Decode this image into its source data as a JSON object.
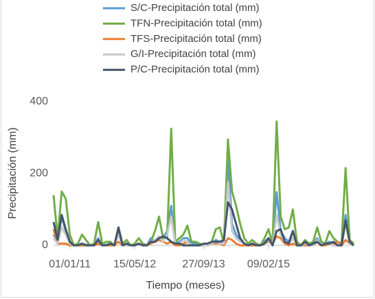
{
  "chart_data": {
    "type": "line",
    "x_label": "Tiempo (meses)",
    "y_label": "Precipitación (mm)",
    "categories": [
      null,
      null,
      null,
      null,
      "01/01/11",
      null,
      null,
      null,
      null,
      null,
      null,
      null,
      null,
      null,
      null,
      null,
      null,
      null,
      null,
      null,
      "15/05/12",
      null,
      null,
      null,
      null,
      null,
      null,
      null,
      null,
      null,
      null,
      null,
      null,
      null,
      null,
      null,
      null,
      "27/09/13",
      null,
      null,
      null,
      null,
      null,
      null,
      null,
      null,
      null,
      null,
      null,
      null,
      null,
      null,
      null,
      "09/02/15",
      null,
      null,
      null,
      null,
      null,
      null,
      null,
      null,
      null,
      null,
      null,
      null,
      null,
      null,
      null,
      null,
      null,
      null,
      null,
      null,
      null
    ],
    "series": [
      {
        "name": "S/C-Precipitación total (mm)",
        "color": "#5b9bd5",
        "values": [
          30,
          10,
          80,
          40,
          5,
          0,
          0,
          5,
          2,
          0,
          0,
          20,
          0,
          2,
          5,
          0,
          40,
          5,
          3,
          0,
          0,
          5,
          0,
          0,
          20,
          10,
          15,
          20,
          40,
          110,
          5,
          10,
          20,
          20,
          5,
          5,
          0,
          0,
          0,
          5,
          15,
          10,
          5,
          240,
          60,
          30,
          15,
          5,
          0,
          5,
          0,
          0,
          10,
          20,
          0,
          148,
          40,
          20,
          10,
          40,
          0,
          0,
          5,
          0,
          5,
          20,
          0,
          5,
          10,
          5,
          0,
          0,
          85,
          10,
          5
        ]
      },
      {
        "name": "TFN-Precipitación total (mm)",
        "color": "#70ad47",
        "values": [
          140,
          20,
          150,
          130,
          30,
          0,
          5,
          30,
          15,
          0,
          5,
          65,
          5,
          10,
          10,
          0,
          50,
          5,
          15,
          0,
          5,
          20,
          5,
          0,
          10,
          40,
          80,
          20,
          20,
          325,
          10,
          20,
          30,
          55,
          10,
          10,
          5,
          0,
          5,
          10,
          45,
          50,
          5,
          295,
          150,
          110,
          60,
          20,
          5,
          15,
          5,
          0,
          20,
          45,
          5,
          345,
          80,
          45,
          50,
          100,
          10,
          0,
          15,
          5,
          10,
          50,
          10,
          5,
          40,
          20,
          10,
          5,
          215,
          15,
          5
        ]
      },
      {
        "name": "TFS-Precipitación total (mm)",
        "color": "#ed7d31",
        "values": [
          45,
          5,
          5,
          5,
          0,
          0,
          0,
          0,
          0,
          0,
          0,
          5,
          0,
          0,
          0,
          0,
          10,
          0,
          0,
          0,
          0,
          5,
          0,
          0,
          5,
          10,
          15,
          10,
          5,
          10,
          0,
          0,
          5,
          10,
          0,
          0,
          0,
          0,
          0,
          5,
          5,
          5,
          0,
          20,
          15,
          5,
          0,
          0,
          0,
          0,
          0,
          0,
          5,
          10,
          5,
          25,
          20,
          5,
          0,
          5,
          0,
          0,
          0,
          0,
          0,
          10,
          0,
          0,
          5,
          5,
          10,
          0,
          15,
          5,
          0
        ]
      },
      {
        "name": "G/I-Precipitación total (mm)",
        "color": "#c9c9c9",
        "values": [
          20,
          5,
          50,
          30,
          5,
          0,
          0,
          5,
          0,
          0,
          0,
          15,
          0,
          0,
          5,
          0,
          30,
          0,
          0,
          0,
          0,
          5,
          0,
          0,
          10,
          15,
          25,
          10,
          30,
          80,
          5,
          5,
          15,
          10,
          0,
          0,
          0,
          0,
          0,
          5,
          10,
          5,
          5,
          175,
          40,
          20,
          10,
          5,
          0,
          5,
          0,
          0,
          5,
          15,
          0,
          85,
          30,
          10,
          5,
          20,
          0,
          0,
          5,
          0,
          0,
          15,
          0,
          5,
          5,
          0,
          0,
          0,
          60,
          5,
          0
        ]
      },
      {
        "name": "P/C-Precipitación total (mm)",
        "color": "#44546a",
        "values": [
          65,
          15,
          85,
          45,
          10,
          0,
          0,
          5,
          0,
          0,
          0,
          15,
          0,
          0,
          5,
          0,
          50,
          0,
          5,
          0,
          0,
          5,
          0,
          0,
          10,
          10,
          20,
          25,
          20,
          10,
          5,
          5,
          0,
          0,
          0,
          0,
          0,
          5,
          5,
          10,
          10,
          10,
          15,
          120,
          100,
          60,
          20,
          5,
          0,
          5,
          0,
          0,
          5,
          20,
          0,
          40,
          45,
          10,
          5,
          40,
          0,
          0,
          10,
          0,
          5,
          10,
          0,
          5,
          5,
          10,
          0,
          0,
          70,
          10,
          0
        ]
      }
    ],
    "ylim": [
      0,
      400
    ],
    "yticks": [
      0,
      200,
      400
    ],
    "grid": false,
    "legend": "top"
  }
}
